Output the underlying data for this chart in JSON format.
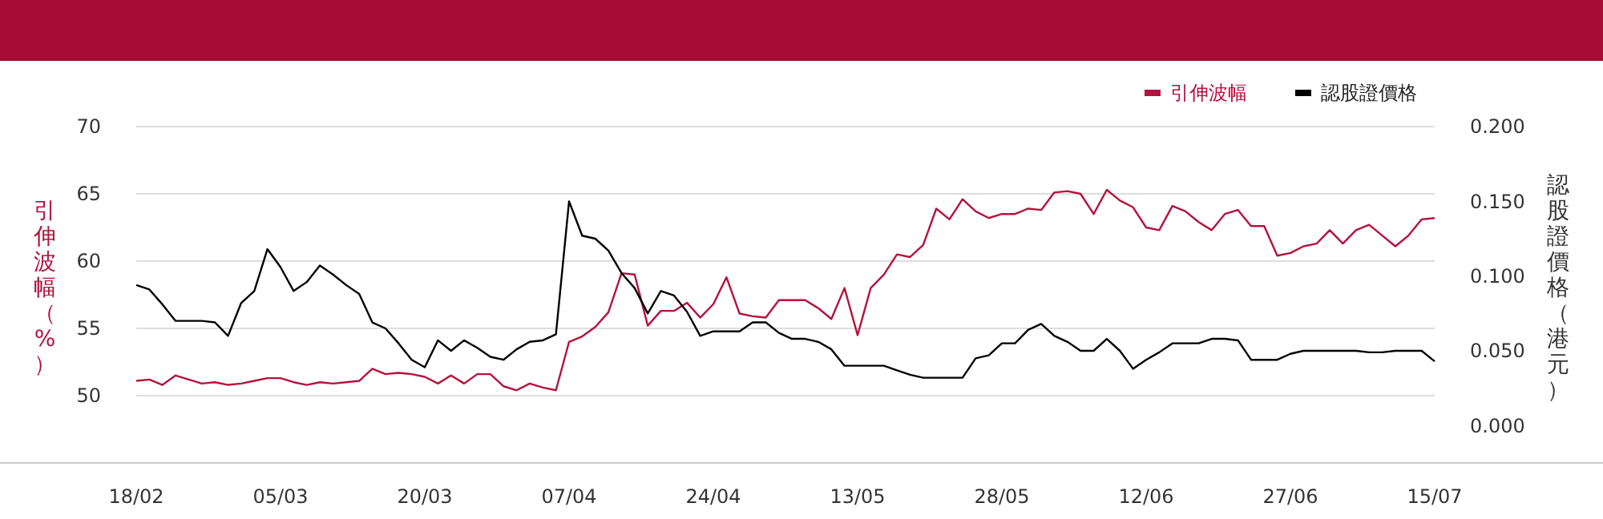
{
  "chart_data": {
    "type": "line",
    "ylabel": "引伸波幅（%）",
    "y2label": "認股證價格（港元）",
    "categories": [
      "18/02",
      null,
      null,
      null,
      null,
      null,
      null,
      null,
      null,
      null,
      null,
      "05/03",
      null,
      null,
      null,
      null,
      null,
      null,
      null,
      null,
      null,
      null,
      "20/03",
      null,
      null,
      null,
      null,
      null,
      null,
      null,
      null,
      null,
      null,
      "07/04",
      null,
      null,
      null,
      null,
      null,
      null,
      null,
      null,
      null,
      null,
      "24/04",
      null,
      null,
      null,
      null,
      null,
      null,
      null,
      null,
      null,
      null,
      "13/05",
      null,
      null,
      null,
      null,
      null,
      null,
      null,
      null,
      null,
      null,
      "28/05",
      null,
      null,
      null,
      null,
      null,
      null,
      null,
      null,
      null,
      null,
      "12/06",
      null,
      null,
      null,
      null,
      null,
      null,
      null,
      null,
      null,
      null,
      "27/06",
      null,
      null,
      null,
      null,
      null,
      null,
      null,
      null,
      null,
      null,
      "15/07"
    ],
    "series": [
      {
        "name": "引伸波幅",
        "color": "#b5123e",
        "values": [
          51.1,
          51.2,
          50.8,
          51.5,
          51.2,
          50.9,
          51.0,
          50.8,
          50.9,
          51.1,
          51.3,
          51.3,
          51.0,
          50.8,
          51.0,
          50.9,
          51.0,
          51.1,
          52.0,
          51.6,
          51.7,
          51.6,
          51.4,
          50.9,
          51.5,
          50.9,
          51.6,
          51.6,
          50.7,
          50.4,
          50.9,
          50.6,
          50.4,
          54.0,
          54.4,
          55.1,
          56.2,
          59.1,
          59.0,
          55.2,
          56.3,
          56.3,
          56.9,
          55.8,
          56.8,
          58.8,
          56.1,
          55.9,
          55.8,
          57.1,
          57.1,
          57.1,
          56.5,
          55.7,
          58.0,
          54.5,
          58.0,
          59.0,
          60.5,
          60.3,
          61.2,
          63.9,
          63.1,
          64.6,
          63.7,
          63.2,
          63.5,
          63.5,
          63.9,
          63.8,
          65.1,
          65.2,
          65.0,
          63.5,
          65.3,
          64.5,
          64.0,
          62.5,
          62.3,
          64.1,
          63.7,
          62.9,
          62.3,
          63.5,
          63.8,
          62.6,
          62.6,
          60.4,
          60.6,
          61.1,
          61.3,
          62.3,
          61.3,
          62.3,
          62.7,
          61.9,
          61.1,
          61.9,
          63.1,
          63.2
        ]
      },
      {
        "name": "認股證價格",
        "color": "#000000",
        "axis": "y2",
        "values": [
          0.094,
          0.091,
          0.081,
          0.07,
          0.07,
          0.07,
          0.069,
          0.06,
          0.082,
          0.09,
          0.118,
          0.106,
          0.09,
          0.096,
          0.107,
          0.101,
          0.094,
          0.088,
          0.069,
          0.065,
          0.055,
          0.044,
          0.039,
          0.057,
          0.05,
          0.057,
          0.052,
          0.046,
          0.044,
          0.051,
          0.056,
          0.057,
          0.061,
          0.15,
          0.127,
          0.125,
          0.117,
          0.102,
          0.092,
          0.075,
          0.09,
          0.087,
          0.076,
          0.06,
          0.063,
          0.063,
          0.063,
          0.069,
          0.069,
          0.062,
          0.058,
          0.058,
          0.056,
          0.051,
          0.04,
          0.04,
          0.04,
          0.04,
          0.037,
          0.034,
          0.032,
          0.032,
          0.032,
          0.032,
          0.045,
          0.047,
          0.055,
          0.055,
          0.064,
          0.068,
          0.06,
          0.056,
          0.05,
          0.05,
          0.058,
          0.05,
          0.038,
          0.044,
          0.049,
          0.055,
          0.055,
          0.055,
          0.058,
          0.058,
          0.057,
          0.044,
          0.044,
          0.044,
          0.048,
          0.05,
          0.05,
          0.05,
          0.05,
          0.05,
          0.049,
          0.049,
          0.05,
          0.05,
          0.05,
          0.043
        ]
      }
    ],
    "ylim": [
      45,
      70
    ],
    "yticks": [
      50,
      55,
      60,
      65,
      70
    ],
    "y2lim": [
      -0.025,
      0.2
    ],
    "y2ticks": [
      {
        "value": 0,
        "label": "0.000"
      },
      {
        "value": 0.05,
        "label": "0.050"
      },
      {
        "value": 0.1,
        "label": "0.100"
      },
      {
        "value": 0.15,
        "label": "0.150"
      },
      {
        "value": 0.2,
        "label": "0.200"
      }
    ],
    "grid": "y",
    "legend": "top right",
    "marker": "none"
  }
}
